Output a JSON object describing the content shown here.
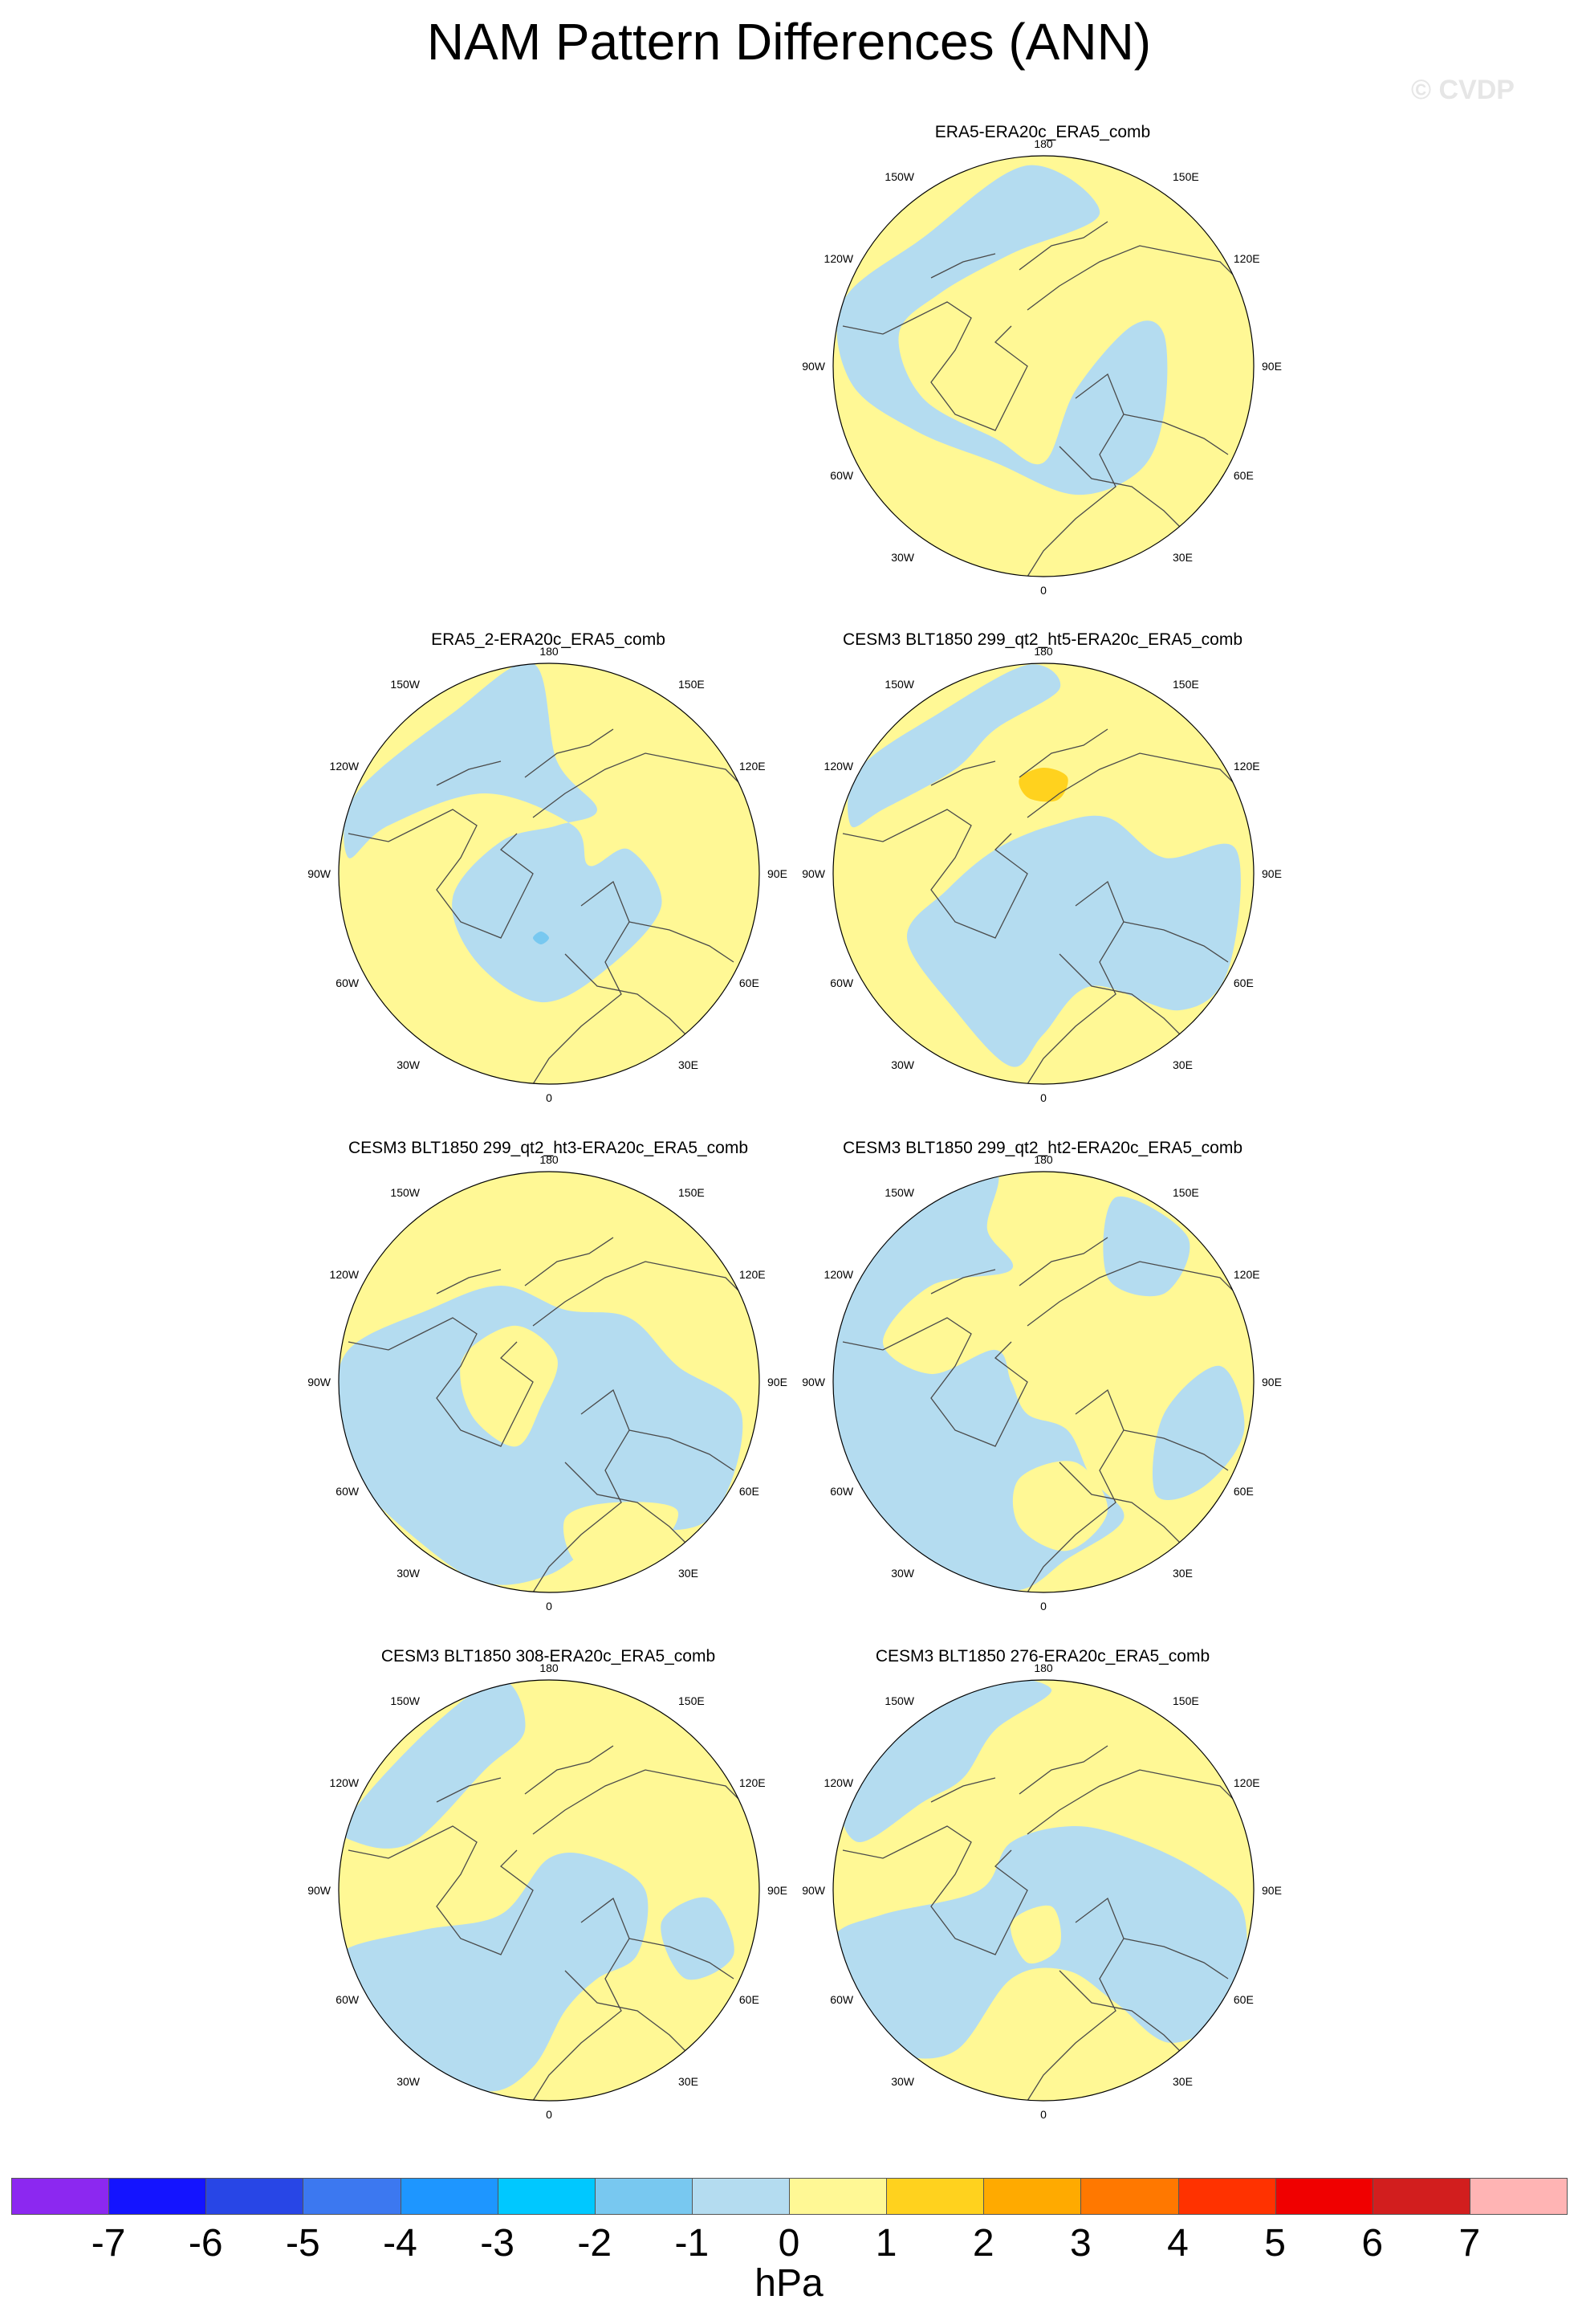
{
  "title": "NAM Pattern Differences (ANN)",
  "watermark": "© CVDP",
  "colors": {
    "positive_small": "#fff895",
    "negative_small": "#b4dcf0",
    "positive_mid": "#ffd21e",
    "negative_mid": "#78c8f0",
    "coastline": "#4a4a4a"
  },
  "lon_labels": {
    "top": "180",
    "bottom": "0",
    "left": "90W",
    "right": "90E",
    "upper_left_outer": "150W",
    "upper_right_outer": "150E",
    "upper_left_inner": "120W",
    "upper_right_inner": "120E",
    "lower_left_inner": "60W",
    "lower_right_inner": "60E",
    "lower_left_outer": "30W",
    "lower_right_outer": "30E"
  },
  "panels": [
    {
      "title": "ERA5-ERA20c_ERA5_comb"
    },
    {
      "title": "ERA5_2-ERA20c_ERA5_comb"
    },
    {
      "title": "CESM3 BLT1850 299_qt2_ht5-ERA20c_ERA5_comb"
    },
    {
      "title": "CESM3 BLT1850 299_qt2_ht3-ERA20c_ERA5_comb"
    },
    {
      "title": "CESM3 BLT1850 299_qt2_ht2-ERA20c_ERA5_comb"
    },
    {
      "title": "CESM3 BLT1850 308-ERA20c_ERA5_comb"
    },
    {
      "title": "CESM3 BLT1850 276-ERA20c_ERA5_comb"
    }
  ],
  "colorbar": {
    "units": "hPa",
    "colors": [
      "#8c28f0",
      "#1414ff",
      "#2846e6",
      "#3c78f0",
      "#1e96ff",
      "#00c8ff",
      "#78c8f0",
      "#b4dcf0",
      "#fff895",
      "#ffd21e",
      "#ffaa00",
      "#ff7800",
      "#ff3200",
      "#f00000",
      "#d21e1e",
      "#ffb4b4"
    ],
    "ticks": [
      "-7",
      "-6",
      "-5",
      "-4",
      "-3",
      "-2",
      "-1",
      "0",
      "1",
      "2",
      "3",
      "4",
      "5",
      "6",
      "7"
    ]
  }
}
